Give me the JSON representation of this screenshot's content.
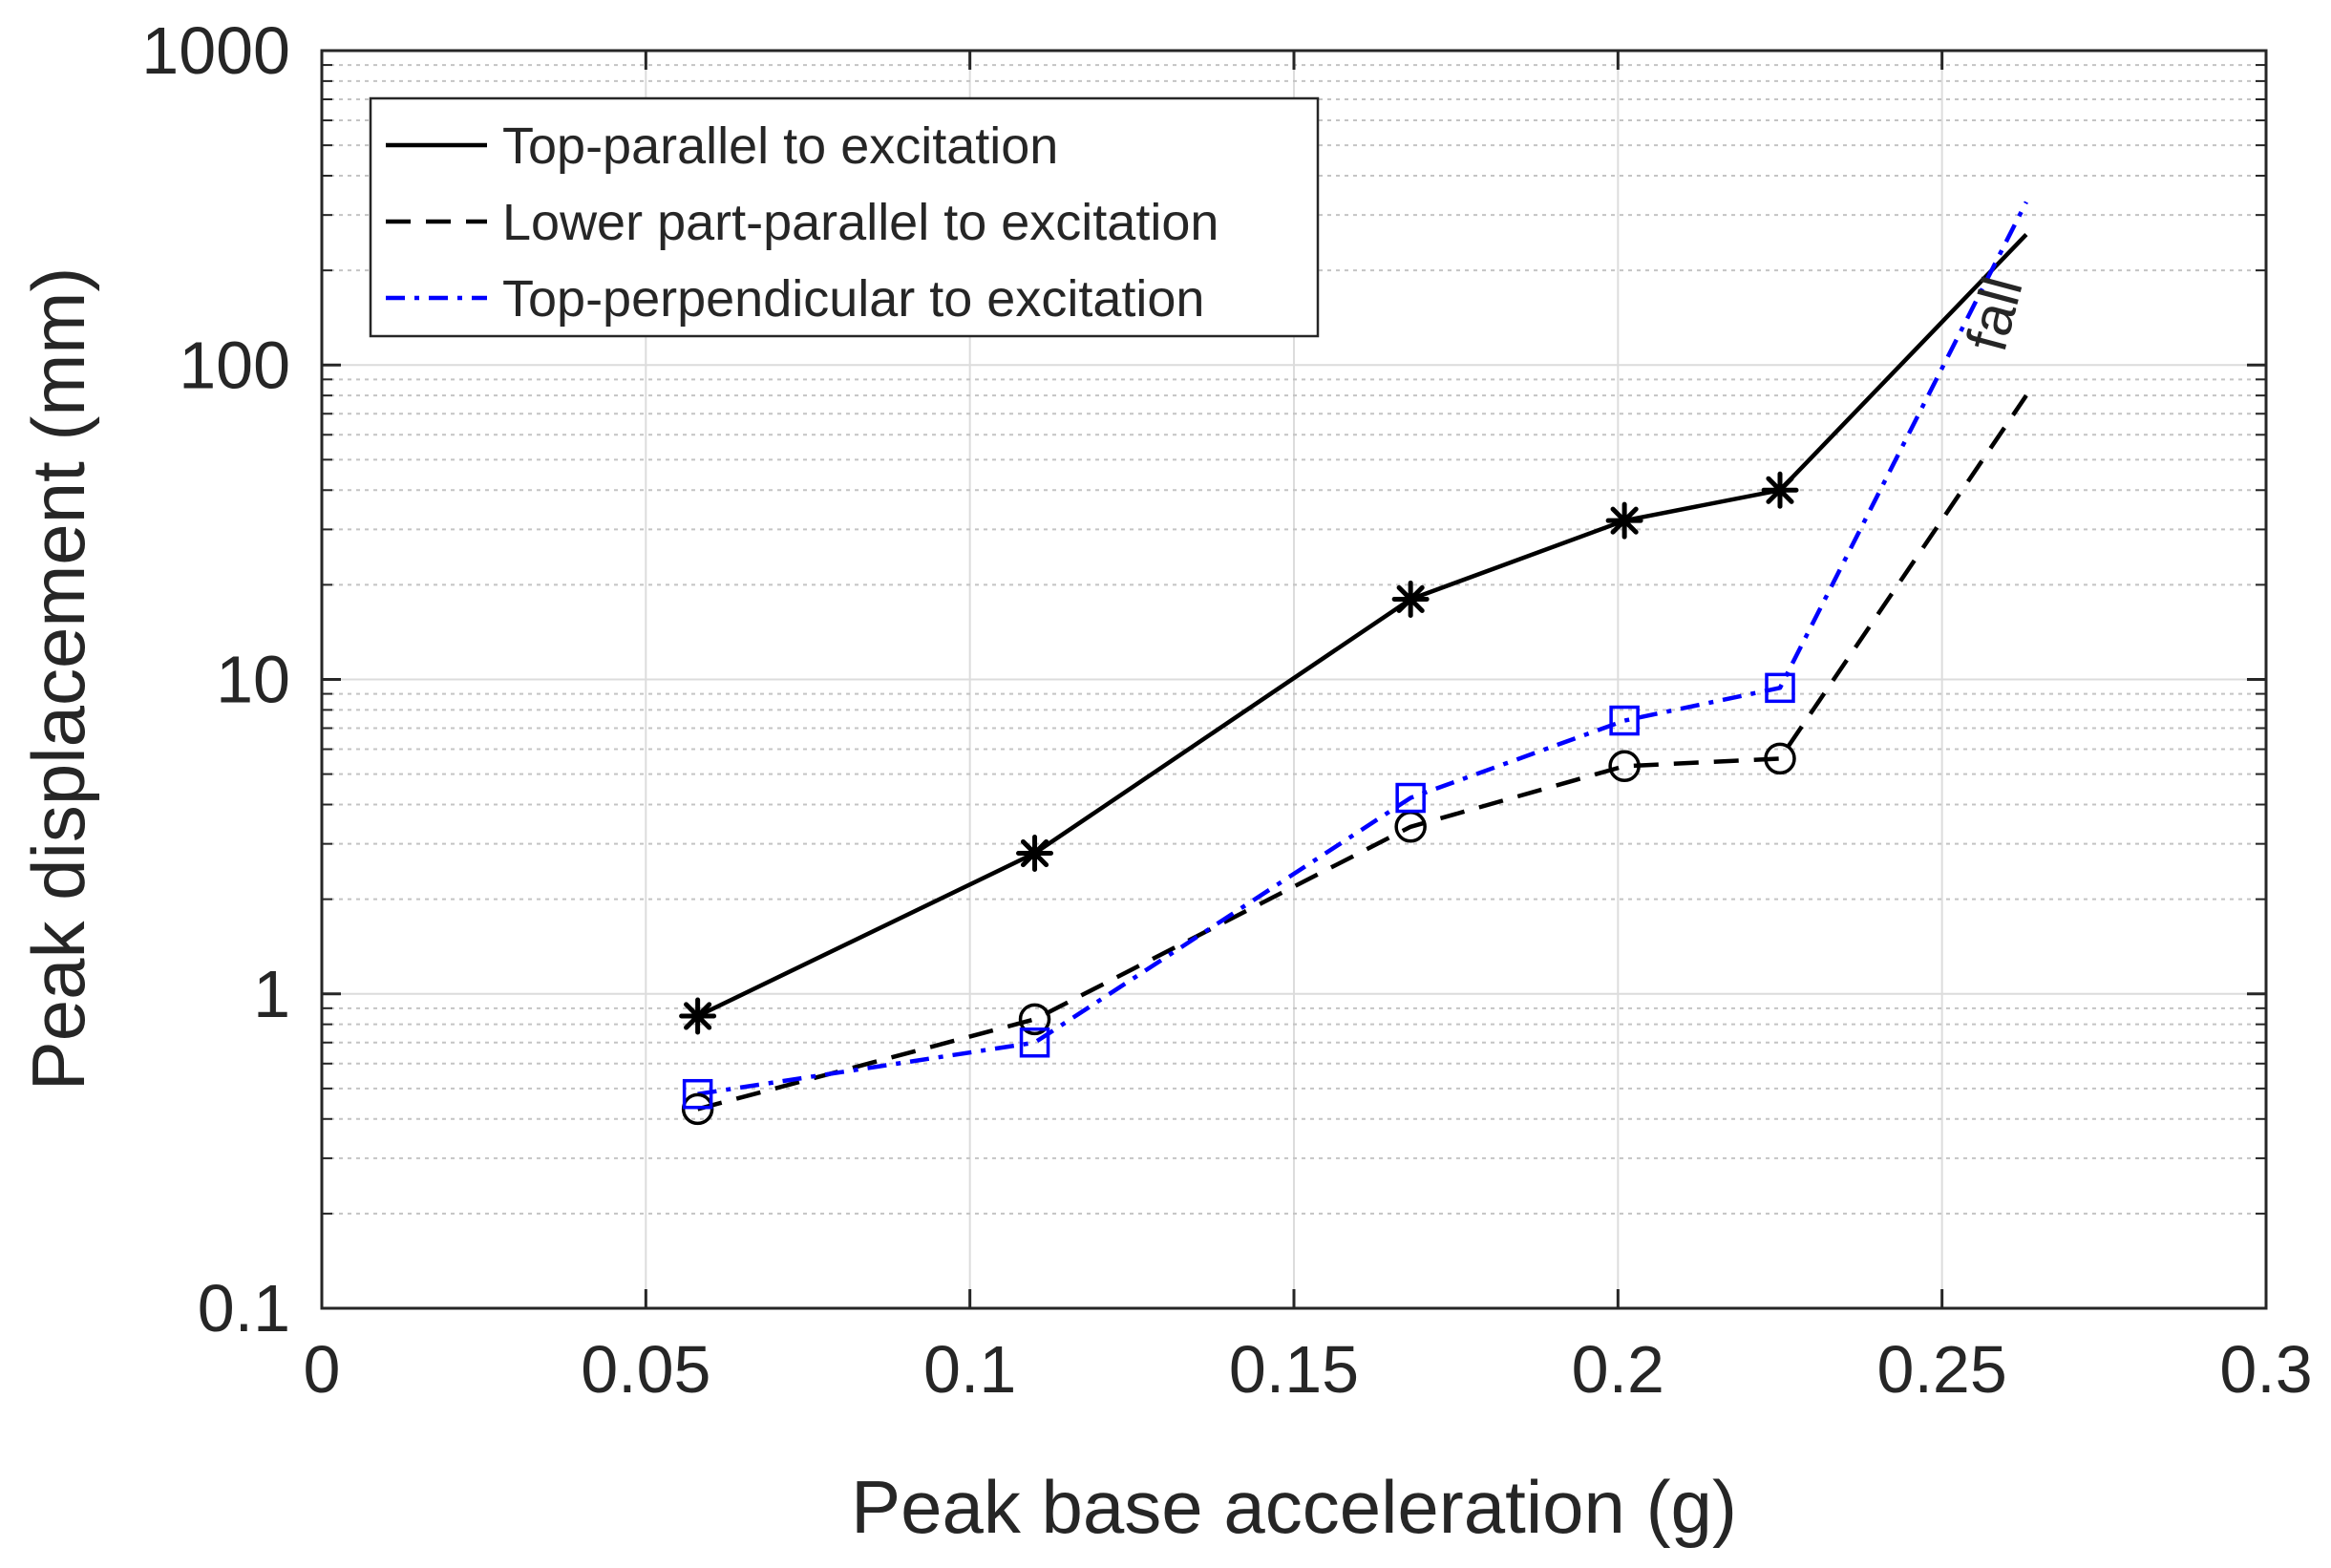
{
  "chart_data": {
    "type": "line",
    "title": "",
    "xlabel": "Peak base acceleration (g)",
    "ylabel": "Peak displacement (mm)",
    "xlim": [
      0,
      0.3
    ],
    "ylim": [
      0.1,
      1000
    ],
    "yscale": "log",
    "grid": true,
    "minor_grid": true,
    "x_ticks": [
      0,
      0.05,
      0.1,
      0.15,
      0.2,
      0.25,
      0.3
    ],
    "x_tick_labels": [
      "0",
      "0.05",
      "0.1",
      "0.15",
      "0.2",
      "0.25",
      "0.3"
    ],
    "y_ticks": [
      0.1,
      1,
      10,
      100,
      1000
    ],
    "y_tick_labels": [
      "0.1",
      "1",
      "10",
      "100",
      "1000"
    ],
    "legend_position": "top-left",
    "series": [
      {
        "name": "Top-parallel to excitation",
        "color": "#000000",
        "line_style": "solid",
        "marker": "asterisk",
        "x": [
          0.058,
          0.11,
          0.168,
          0.201,
          0.225,
          0.263
        ],
        "y": [
          0.85,
          2.8,
          18,
          32,
          40,
          260
        ],
        "marker_count": 5
      },
      {
        "name": "Lower part-parallel to excitation",
        "color": "#000000",
        "line_style": "dashed",
        "marker": "circle",
        "x": [
          0.058,
          0.11,
          0.168,
          0.201,
          0.225,
          0.263
        ],
        "y": [
          0.43,
          0.83,
          3.4,
          5.3,
          5.6,
          80
        ],
        "marker_count": 5
      },
      {
        "name": "Top-perpendicular to excitation",
        "color": "#0000ff",
        "line_style": "dashdot",
        "marker": "square",
        "x": [
          0.058,
          0.11,
          0.168,
          0.201,
          0.225,
          0.263
        ],
        "y": [
          0.48,
          0.7,
          4.2,
          7.4,
          9.4,
          330
        ],
        "marker_count": 5
      }
    ],
    "annotations": [
      {
        "text": "fall",
        "x": 0.261,
        "y": 140
      }
    ]
  }
}
